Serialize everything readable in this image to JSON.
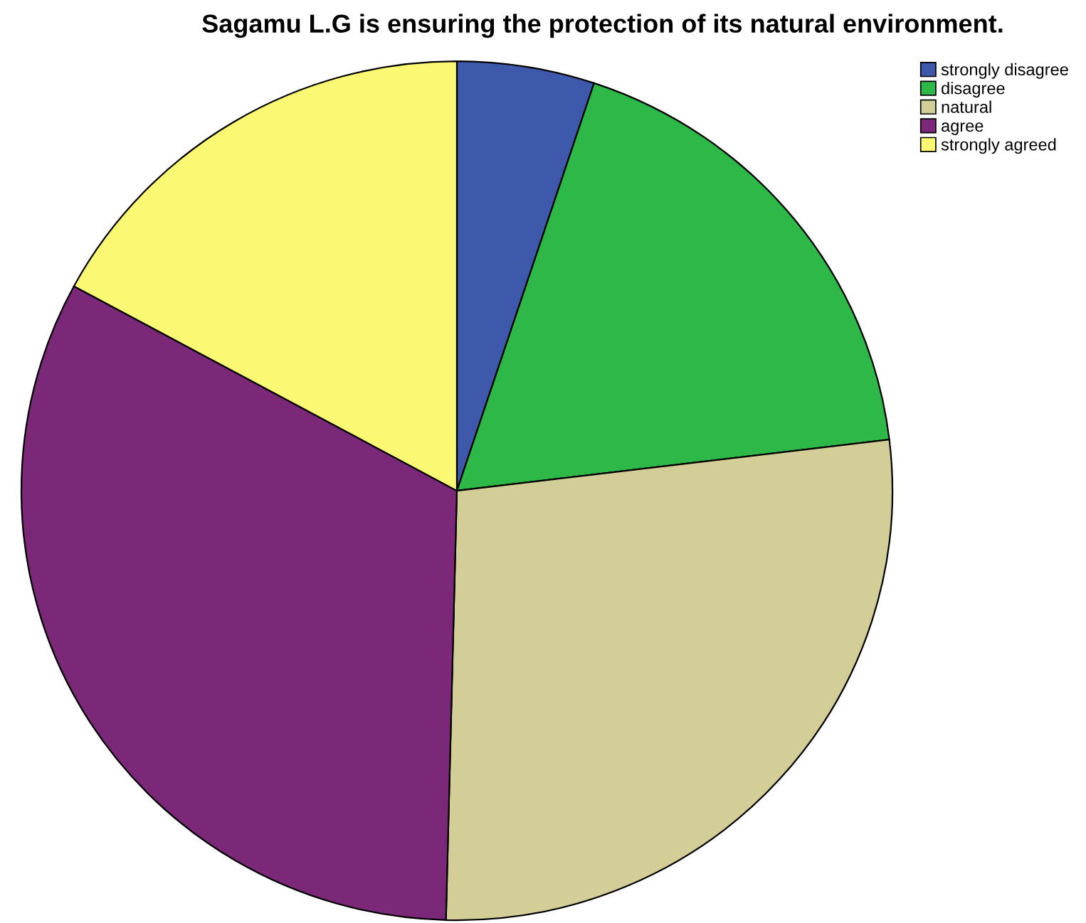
{
  "chart_data": {
    "type": "pie",
    "title": "Sagamu L.G is ensuring the protection of its natural environment.",
    "categories": [
      "strongly disagree",
      "disagree",
      "natural",
      "agree",
      "strongly agreed"
    ],
    "values": [
      5.1,
      18.0,
      27.3,
      32.5,
      17.1
    ],
    "colors": [
      "#3e58ac",
      "#2eb848",
      "#d3ce97",
      "#7b2878",
      "#fbf873"
    ],
    "legend": "top right"
  }
}
